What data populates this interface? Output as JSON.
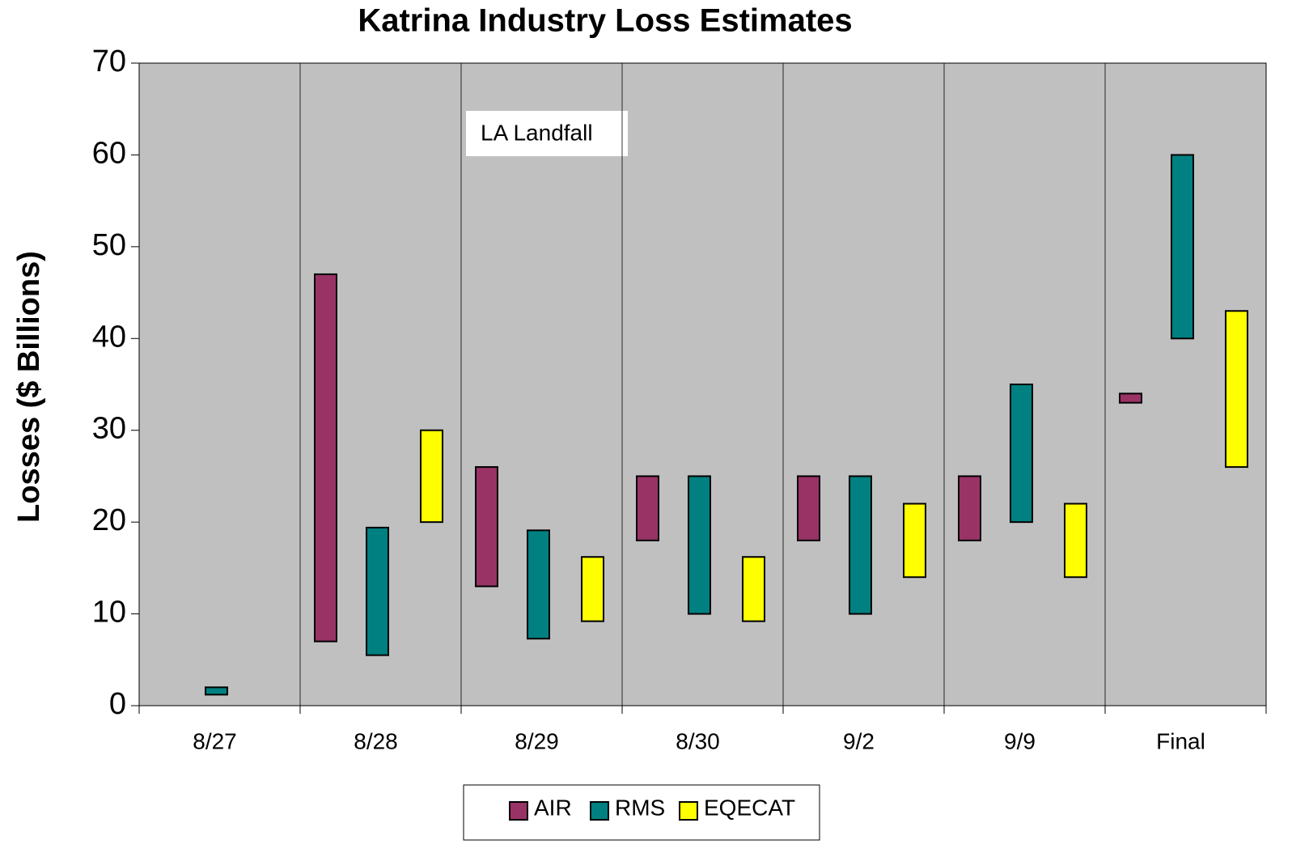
{
  "chart_data": {
    "type": "floating-bar",
    "title": "Katrina Industry Loss Estimates",
    "y_label": "Losses ($ Billions)",
    "annotation": "LA Landfall",
    "categories": [
      "8/27",
      "8/28",
      "8/29",
      "8/30",
      "9/2",
      "9/9",
      "Final"
    ],
    "series": [
      {
        "name": "AIR",
        "color": "#993366",
        "values": [
          null,
          [
            7,
            47
          ],
          [
            13,
            26
          ],
          [
            18,
            25
          ],
          [
            18,
            25
          ],
          [
            18,
            25
          ],
          [
            33,
            34
          ]
        ]
      },
      {
        "name": "RMS",
        "color": "#008080",
        "values": [
          [
            1.2,
            2
          ],
          [
            5.5,
            19.4
          ],
          [
            7.3,
            19.1
          ],
          [
            10,
            25
          ],
          [
            10,
            25
          ],
          [
            20,
            35
          ],
          [
            40,
            60
          ]
        ]
      },
      {
        "name": "EQECAT",
        "color": "#ffff00",
        "values": [
          null,
          [
            20,
            30
          ],
          [
            9.2,
            16.2
          ],
          [
            9.2,
            16.2
          ],
          [
            14,
            22
          ],
          [
            14,
            22
          ],
          [
            26,
            43
          ]
        ]
      }
    ],
    "ylim": [
      0,
      70
    ],
    "yticks": [
      0,
      10,
      20,
      30,
      40,
      50,
      60,
      70
    ]
  }
}
